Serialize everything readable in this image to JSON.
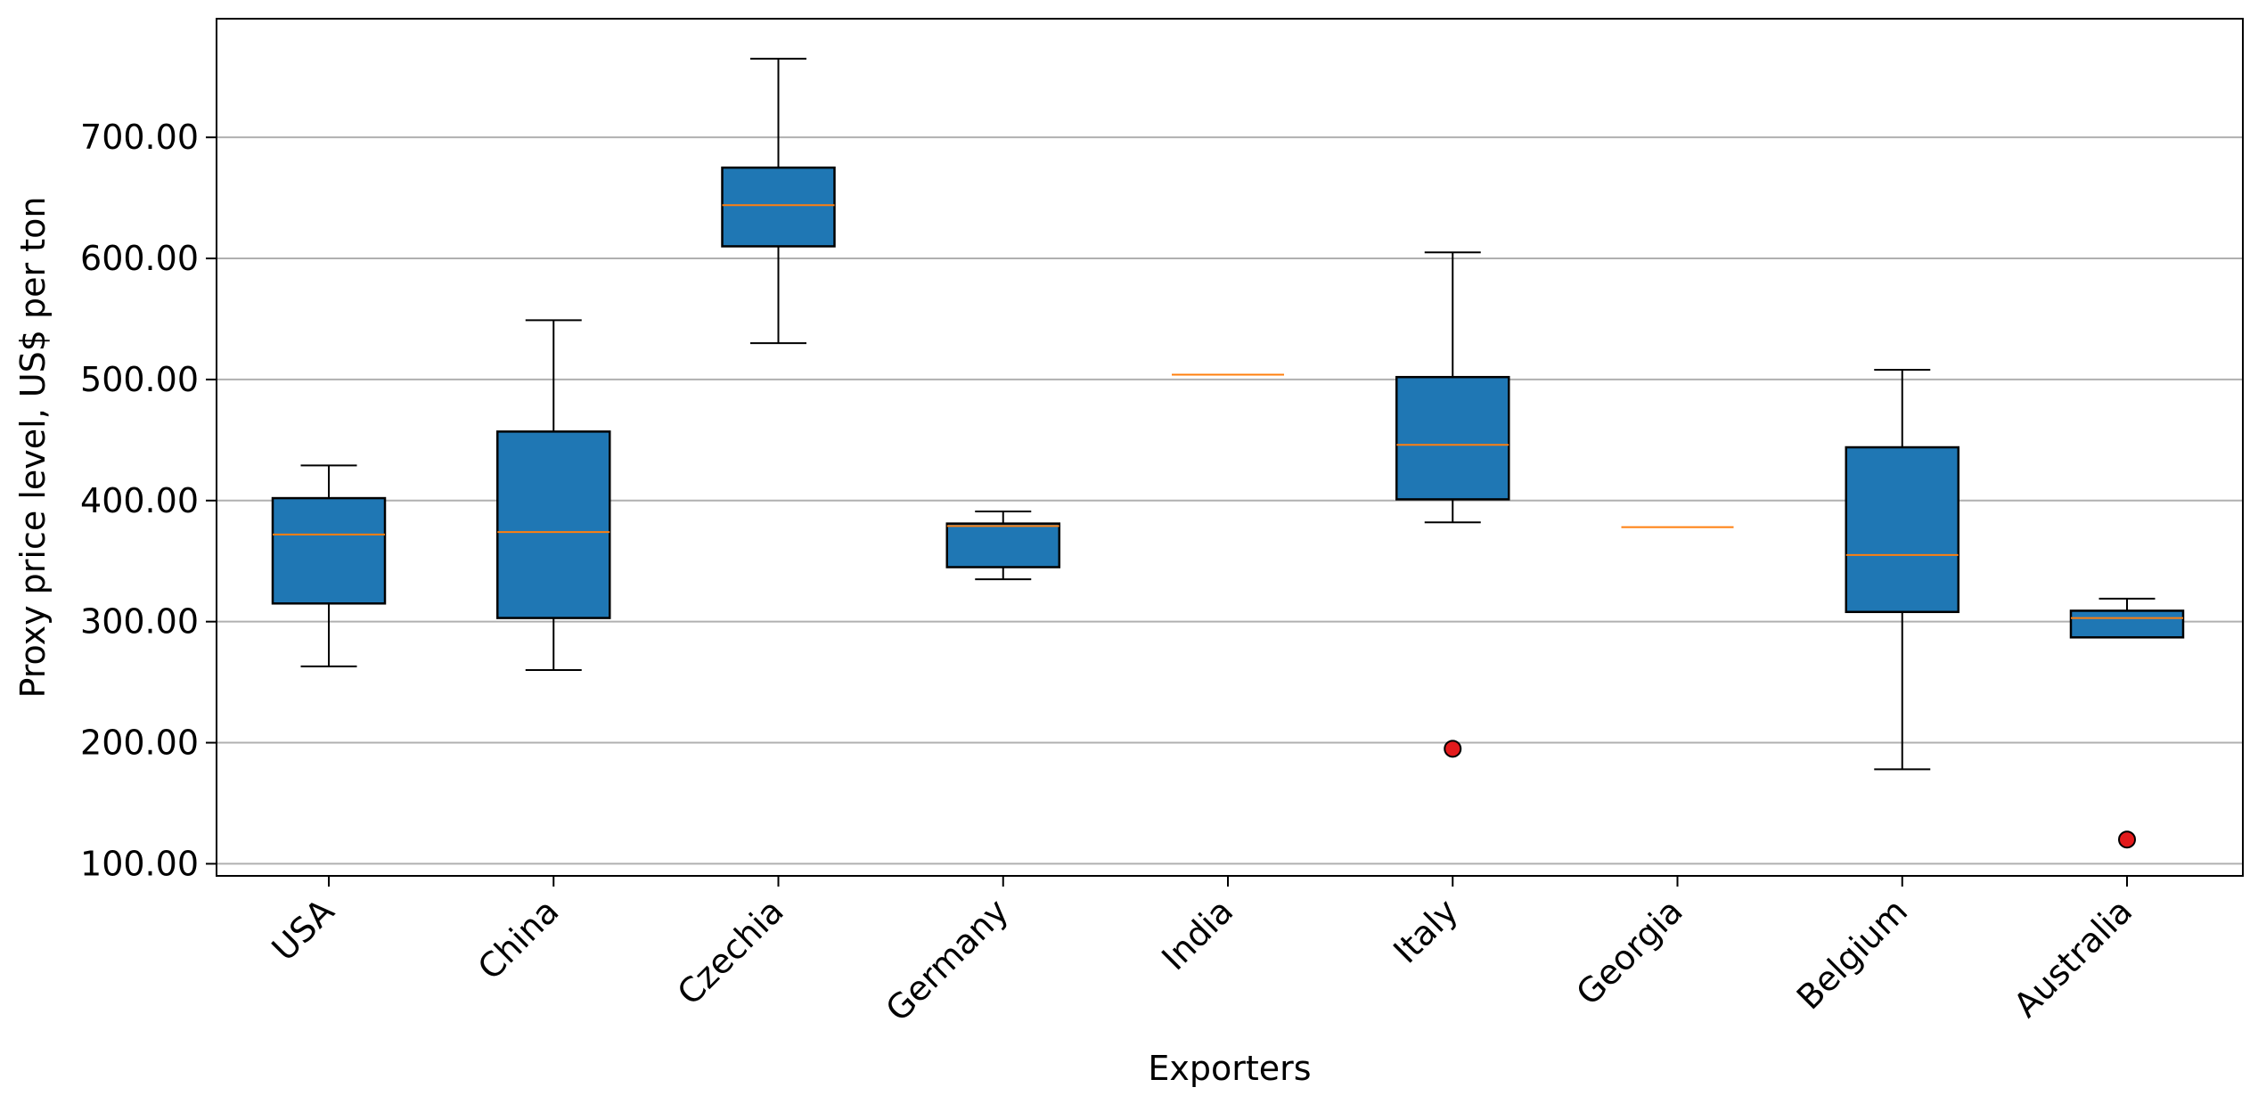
{
  "chart_data": {
    "type": "box",
    "title": "",
    "xlabel": "Exporters",
    "ylabel": "Proxy price level, US$ per ton",
    "ylim": [
      90,
      798
    ],
    "yticks": [
      100,
      200,
      300,
      400,
      500,
      600,
      700
    ],
    "ytick_labels": [
      "100.00",
      "200.00",
      "300.00",
      "400.00",
      "500.00",
      "600.00",
      "700.00"
    ],
    "grid": "horizontal",
    "colors": {
      "box_fill": "#1f77b4",
      "median": "#ff7f0e",
      "outlier": "#e31a1c",
      "grid": "#b0b0b0"
    },
    "categories": [
      "USA",
      "China",
      "Czechia",
      "Germany",
      "India",
      "Italy",
      "Georgia",
      "Belgium",
      "Australia"
    ],
    "boxes": [
      {
        "name": "USA",
        "whisker_low": 263,
        "q1": 315,
        "median": 372,
        "q3": 402,
        "whisker_high": 429,
        "outliers": []
      },
      {
        "name": "China",
        "whisker_low": 260,
        "q1": 303,
        "median": 374,
        "q3": 457,
        "whisker_high": 549,
        "outliers": []
      },
      {
        "name": "Czechia",
        "whisker_low": 530,
        "q1": 610,
        "median": 644,
        "q3": 675,
        "whisker_high": 765,
        "outliers": []
      },
      {
        "name": "Germany",
        "whisker_low": 335,
        "q1": 345,
        "median": 379,
        "q3": 381,
        "whisker_high": 391,
        "outliers": []
      },
      {
        "name": "India",
        "whisker_low": 504,
        "q1": 504,
        "median": 504,
        "q3": 504,
        "whisker_high": 504,
        "outliers": []
      },
      {
        "name": "Italy",
        "whisker_low": 382,
        "q1": 401,
        "median": 446,
        "q3": 502,
        "whisker_high": 605,
        "outliers": [
          195
        ]
      },
      {
        "name": "Georgia",
        "whisker_low": 378,
        "q1": 378,
        "median": 378,
        "q3": 378,
        "whisker_high": 378,
        "outliers": []
      },
      {
        "name": "Belgium",
        "whisker_low": 178,
        "q1": 308,
        "median": 355,
        "q3": 444,
        "whisker_high": 508,
        "outliers": []
      },
      {
        "name": "Australia",
        "whisker_low": 287,
        "q1": 287,
        "median": 303,
        "q3": 309,
        "whisker_high": 319,
        "outliers": [
          120
        ]
      }
    ]
  }
}
